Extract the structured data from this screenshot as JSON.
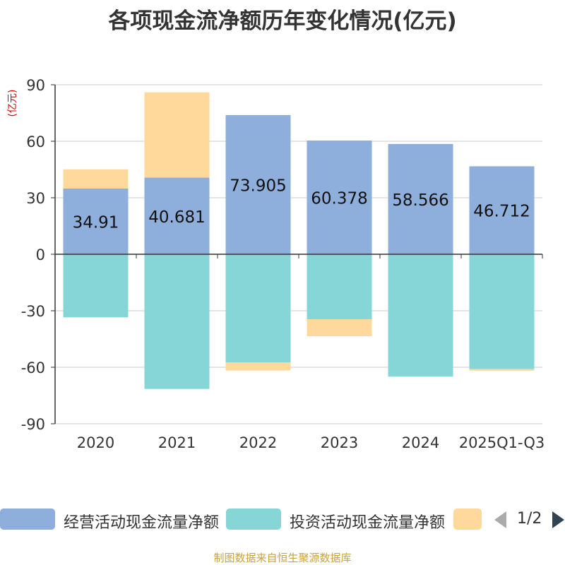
{
  "title": "各项现金流净额历年变化情况(亿元)",
  "source": "制图数据来自恒生聚源数据库",
  "legend": {
    "items": [
      {
        "label": "经营活动现金流量净额",
        "color": "#8eaedb"
      },
      {
        "label": "投资活动现金流量净额",
        "color": "#86d6d8"
      },
      {
        "label": "",
        "color": "#fed99b"
      }
    ],
    "page": "1/2"
  },
  "chart_data": {
    "type": "bar",
    "stacked": true,
    "title": "各项现金流净额历年变化情况(亿元)",
    "ylabel": "(亿元)",
    "xlabel": "",
    "ylim": [
      -90,
      90
    ],
    "yticks": [
      90,
      60,
      30,
      0,
      -30,
      -60,
      -90
    ],
    "grid": true,
    "categories": [
      "2020",
      "2021",
      "2022",
      "2023",
      "2024",
      "2025Q1-Q3"
    ],
    "series": [
      {
        "name": "经营活动现金流量净额",
        "color": "#8eaedb",
        "values": [
          34.91,
          40.681,
          73.905,
          60.378,
          58.566,
          46.712
        ],
        "labels": true
      },
      {
        "name": "投资活动现金流量净额",
        "color": "#86d6d8",
        "values": [
          -33.5,
          -71.5,
          -57.5,
          -34.5,
          -65,
          -61
        ],
        "labels": false
      },
      {
        "name": "",
        "color": "#fed99b",
        "values": [
          10.2,
          45.3,
          -4.2,
          -9,
          0,
          -0.8
        ],
        "labels": false
      }
    ]
  }
}
